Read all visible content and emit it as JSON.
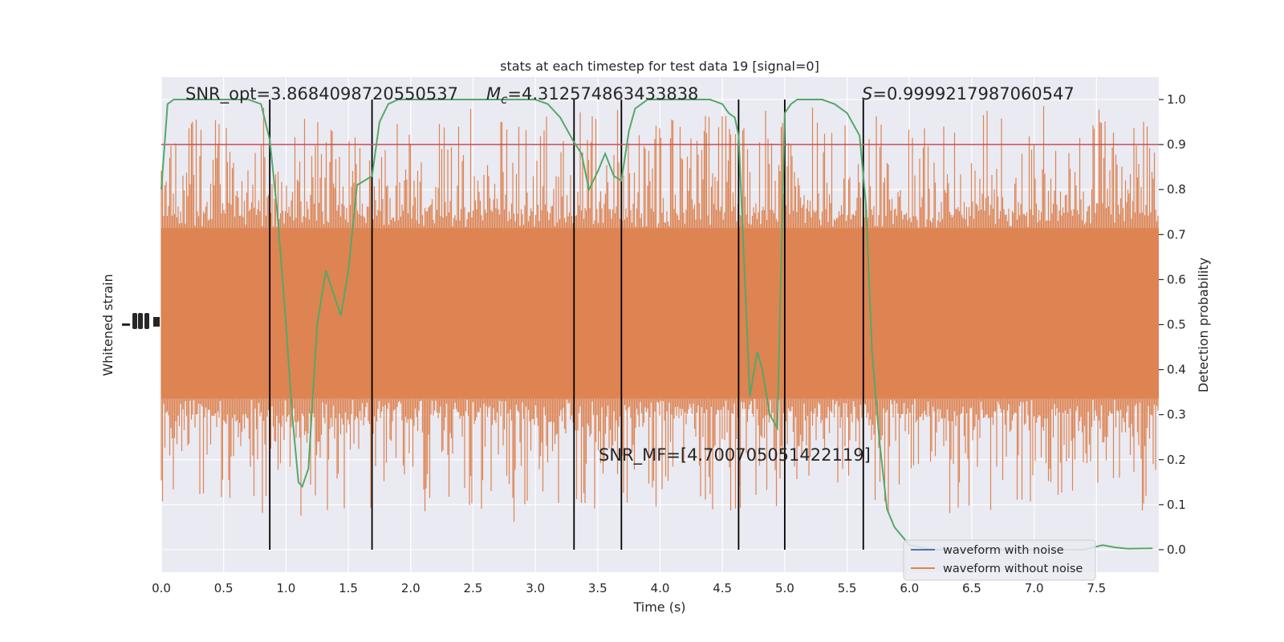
{
  "chart_data": {
    "type": "line",
    "title": "stats at each timestep for test data 19 [signal=0]",
    "xlabel": "Time (s)",
    "ylabel_left": "Whitened strain",
    "ylabel_right": "Detection probability",
    "xlim": [
      0,
      8
    ],
    "ylim_right": [
      -0.05,
      1.05
    ],
    "x_ticks": [
      "0.0",
      "0.5",
      "1.0",
      "1.5",
      "2.0",
      "2.5",
      "3.0",
      "3.5",
      "4.0",
      "4.5",
      "5.0",
      "5.5",
      "6.0",
      "6.5",
      "7.0",
      "7.5"
    ],
    "y_ticks_right": [
      "0.0",
      "0.1",
      "0.2",
      "0.3",
      "0.4",
      "0.5",
      "0.6",
      "0.7",
      "0.8",
      "0.9",
      "1.0"
    ],
    "grid": true,
    "threshold": {
      "value": 0.9,
      "color": "#c44e52"
    },
    "annotations": {
      "snr_opt": "SNR_opt=3.8684098720550537",
      "mc_symbol": "M",
      "mc_sub": "c",
      "mc_value": "=4.312574863433838",
      "s_symbol": "S",
      "s_value": "=0.9999217987060547",
      "snr_mf": "SNR_MF=[4.700705051422119]"
    },
    "vlines_x": [
      0.87,
      1.69,
      3.31,
      3.69,
      4.63,
      5.0,
      5.63
    ],
    "legend": {
      "placement": "lower-right",
      "entries": [
        {
          "label": "waveform with noise",
          "color": "#4c72b0"
        },
        {
          "label": "waveform without noise",
          "color": "#dd8452"
        }
      ]
    },
    "noise_series": {
      "color": "#dd8452",
      "x_range": [
        0,
        8
      ],
      "description_level_band": [
        0.3,
        0.75
      ]
    },
    "probability_series": {
      "color": "#55a868",
      "x": [
        0.0,
        0.05,
        0.1,
        0.2,
        0.3,
        0.5,
        0.7,
        0.8,
        0.87,
        0.93,
        1.0,
        1.05,
        1.1,
        1.13,
        1.18,
        1.25,
        1.32,
        1.38,
        1.44,
        1.5,
        1.57,
        1.63,
        1.69,
        1.75,
        1.82,
        1.9,
        2.0,
        2.2,
        2.4,
        2.6,
        2.8,
        3.0,
        3.1,
        3.2,
        3.3,
        3.37,
        3.43,
        3.5,
        3.56,
        3.63,
        3.69,
        3.75,
        3.8,
        3.85,
        3.9,
        4.0,
        4.2,
        4.4,
        4.5,
        4.55,
        4.6,
        4.63,
        4.68,
        4.72,
        4.78,
        4.82,
        4.88,
        4.94,
        5.0,
        5.05,
        5.1,
        5.15,
        5.3,
        5.4,
        5.5,
        5.6,
        5.65,
        5.7,
        5.76,
        5.82,
        5.88,
        6.0,
        6.2,
        6.5,
        7.0,
        7.4,
        7.55,
        7.65,
        7.75,
        7.95
      ],
      "y": [
        0.8,
        0.99,
        1.0,
        1.0,
        1.0,
        1.0,
        1.0,
        0.99,
        0.91,
        0.75,
        0.5,
        0.3,
        0.15,
        0.14,
        0.18,
        0.5,
        0.62,
        0.57,
        0.52,
        0.62,
        0.81,
        0.82,
        0.83,
        0.95,
        0.99,
        1.0,
        1.0,
        1.0,
        1.0,
        1.0,
        1.0,
        1.0,
        0.99,
        0.96,
        0.91,
        0.88,
        0.8,
        0.84,
        0.88,
        0.83,
        0.82,
        0.93,
        0.98,
        0.99,
        1.0,
        1.0,
        1.0,
        1.0,
        0.99,
        0.97,
        0.96,
        0.92,
        0.6,
        0.34,
        0.44,
        0.4,
        0.3,
        0.27,
        0.97,
        0.99,
        1.0,
        1.0,
        1.0,
        0.99,
        0.97,
        0.92,
        0.77,
        0.44,
        0.24,
        0.09,
        0.05,
        0.01,
        0.0,
        0.0,
        0.0,
        0.0,
        0.01,
        0.005,
        0.002,
        0.003
      ]
    }
  }
}
